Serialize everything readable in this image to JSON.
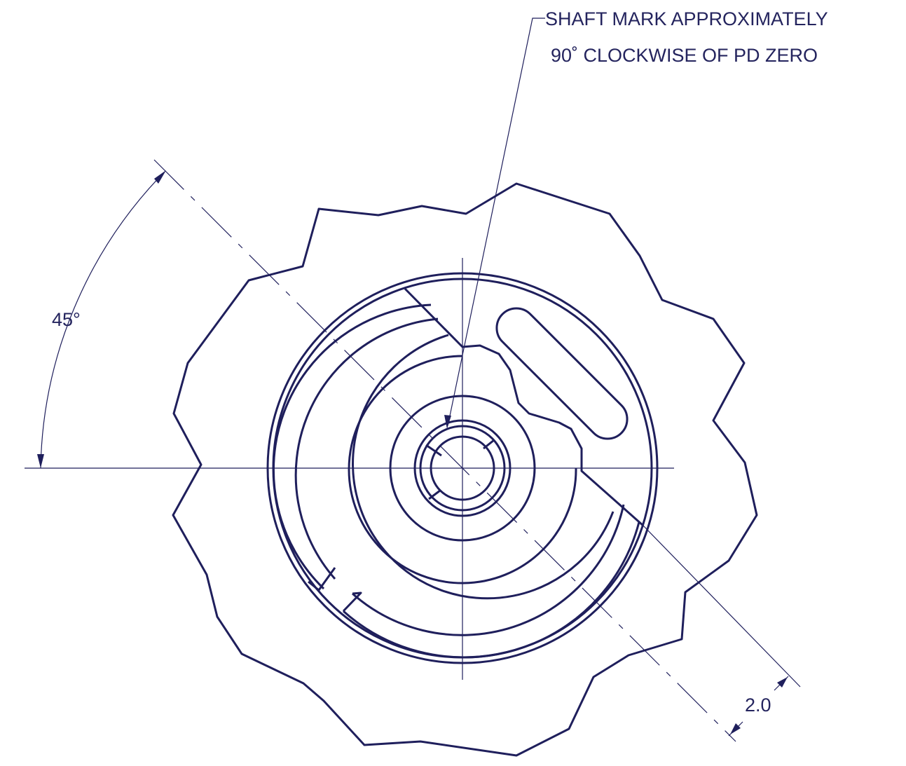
{
  "note_lines": [
    "SHAFT MARK APPROXIMATELY",
    "90˚ CLOCKWISE OF PD ZERO"
  ],
  "angle_label": "45°",
  "dimension_label": "2.0"
}
